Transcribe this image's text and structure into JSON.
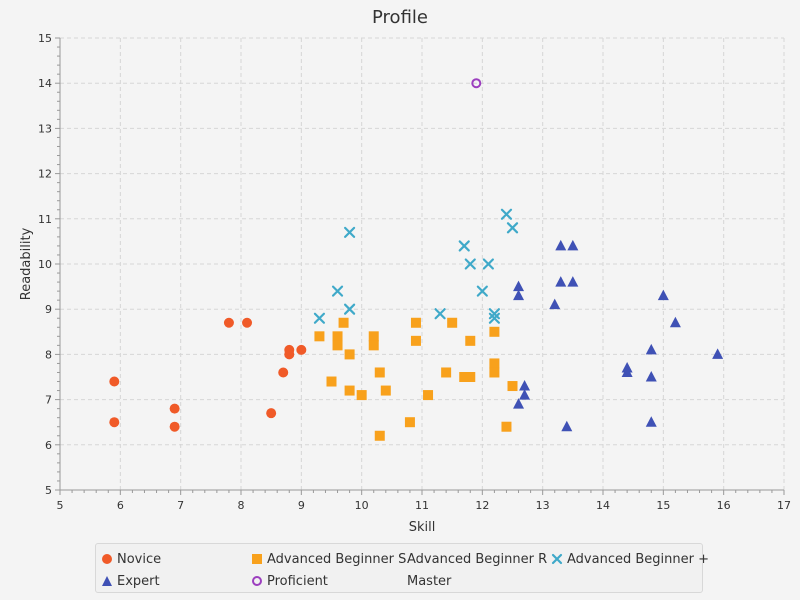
{
  "chart_data": {
    "type": "scatter",
    "title": "Profile",
    "xlabel": "Skill",
    "ylabel": "Readability",
    "xlim": [
      5,
      17
    ],
    "ylim": [
      5,
      15
    ],
    "xticks": [
      "5",
      "6",
      "7",
      "8",
      "9",
      "10",
      "11",
      "12",
      "13",
      "14",
      "15",
      "16",
      "17"
    ],
    "yticks": [
      "5",
      "6",
      "7",
      "8",
      "9",
      "10",
      "11",
      "12",
      "13",
      "14",
      "15"
    ],
    "grid": true,
    "legend_position": "bottom",
    "series": [
      {
        "name": "Novice",
        "marker": "circle",
        "color": "#f05a28",
        "points": [
          [
            5.9,
            7.4
          ],
          [
            5.9,
            6.5
          ],
          [
            6.9,
            6.8
          ],
          [
            6.9,
            6.4
          ],
          [
            7.8,
            8.7
          ],
          [
            8.1,
            8.7
          ],
          [
            8.5,
            6.7
          ],
          [
            8.7,
            7.6
          ],
          [
            8.8,
            8.1
          ],
          [
            8.8,
            8.0
          ],
          [
            9.0,
            8.1
          ]
        ]
      },
      {
        "name": "Advanced Beginner S",
        "marker": "square",
        "color": "#f8a11c",
        "points": [
          [
            9.3,
            8.4
          ],
          [
            9.5,
            7.4
          ],
          [
            9.6,
            8.4
          ],
          [
            9.6,
            8.2
          ],
          [
            9.7,
            8.7
          ],
          [
            9.8,
            8.0
          ],
          [
            9.8,
            7.2
          ],
          [
            10.0,
            7.1
          ],
          [
            10.2,
            8.4
          ],
          [
            10.2,
            8.2
          ],
          [
            10.3,
            7.6
          ],
          [
            10.3,
            6.2
          ],
          [
            10.4,
            7.2
          ],
          [
            10.8,
            6.5
          ],
          [
            10.9,
            8.7
          ],
          [
            10.9,
            8.3
          ],
          [
            11.1,
            7.1
          ],
          [
            11.4,
            7.6
          ],
          [
            11.5,
            8.7
          ],
          [
            11.7,
            7.5
          ],
          [
            11.8,
            7.5
          ],
          [
            11.8,
            8.3
          ],
          [
            12.2,
            8.5
          ],
          [
            12.2,
            7.8
          ],
          [
            12.2,
            7.6
          ],
          [
            12.4,
            6.4
          ],
          [
            12.5,
            7.3
          ]
        ]
      },
      {
        "name": "Advanced Beginner R",
        "marker": "none",
        "color": "#333333",
        "points": []
      },
      {
        "name": "Advanced Beginner +",
        "marker": "x",
        "color": "#3fa9c9",
        "points": [
          [
            9.3,
            8.8
          ],
          [
            9.6,
            9.4
          ],
          [
            9.8,
            10.7
          ],
          [
            9.8,
            9.0
          ],
          [
            11.3,
            8.9
          ],
          [
            11.7,
            10.4
          ],
          [
            11.8,
            10.0
          ],
          [
            12.0,
            9.4
          ],
          [
            12.1,
            10.0
          ],
          [
            12.2,
            8.9
          ],
          [
            12.2,
            8.8
          ],
          [
            12.4,
            11.1
          ],
          [
            12.5,
            10.8
          ]
        ]
      },
      {
        "name": "Expert",
        "marker": "triangle",
        "color": "#3f51b5",
        "points": [
          [
            12.6,
            9.5
          ],
          [
            12.6,
            9.3
          ],
          [
            12.6,
            6.9
          ],
          [
            12.7,
            7.3
          ],
          [
            12.7,
            7.1
          ],
          [
            13.2,
            9.1
          ],
          [
            13.3,
            10.4
          ],
          [
            13.3,
            9.6
          ],
          [
            13.4,
            6.4
          ],
          [
            13.5,
            10.4
          ],
          [
            13.5,
            9.6
          ],
          [
            14.4,
            7.7
          ],
          [
            14.4,
            7.6
          ],
          [
            14.8,
            8.1
          ],
          [
            14.8,
            7.5
          ],
          [
            14.8,
            6.5
          ],
          [
            15.0,
            9.3
          ],
          [
            15.2,
            8.7
          ],
          [
            15.9,
            8.0
          ]
        ]
      },
      {
        "name": "Proficient",
        "marker": "circle-open",
        "color": "#9c3fbf",
        "points": [
          [
            11.9,
            14.0
          ]
        ]
      },
      {
        "name": "Master",
        "marker": "none",
        "color": "#333333",
        "points": []
      }
    ]
  }
}
